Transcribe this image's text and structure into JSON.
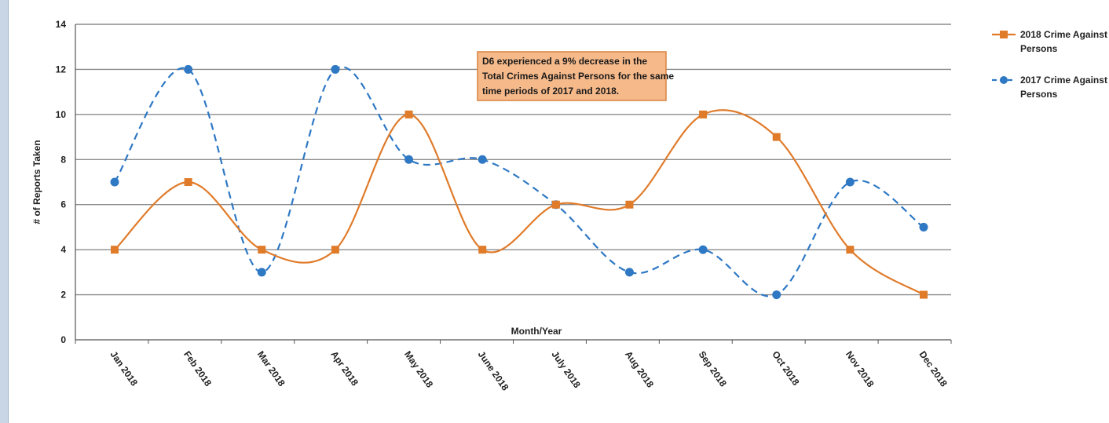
{
  "chart_data": {
    "type": "line",
    "categories": [
      "Jan 2018",
      "Feb 2018",
      "Mar 2018",
      "Apr 2018",
      "May 2018",
      "June 2018",
      "July 2018",
      "Aug 2018",
      "Sep 2018",
      "Oct 2018",
      "Nov 2018",
      "Dec 2018"
    ],
    "series": [
      {
        "name": "2018 Crime Against Persons",
        "values": [
          4,
          7,
          4,
          4,
          10,
          4,
          6,
          6,
          10,
          9,
          4,
          2
        ],
        "color": "#e07b2a",
        "marker": "square",
        "style": "solid"
      },
      {
        "name": "2017 Crime Against Persons",
        "values": [
          7,
          12,
          3,
          12,
          8,
          8,
          6,
          3,
          4,
          2,
          7,
          5
        ],
        "color": "#2e78c4",
        "marker": "circle",
        "style": "dashed"
      }
    ],
    "xlabel": "Month/Year",
    "ylabel": "# of Reports Taken",
    "ylim": [
      0,
      14
    ],
    "yticks": [
      0,
      2,
      4,
      6,
      8,
      10,
      12,
      14
    ],
    "grid": true,
    "legend_position": "right",
    "annotation": {
      "lines": [
        "D6 experienced a 9% decrease in the",
        "Total Crimes Against Persons for the same",
        "time periods of 2017 and 2018."
      ],
      "fill": "#f6b98a",
      "border": "#d9823f"
    }
  }
}
